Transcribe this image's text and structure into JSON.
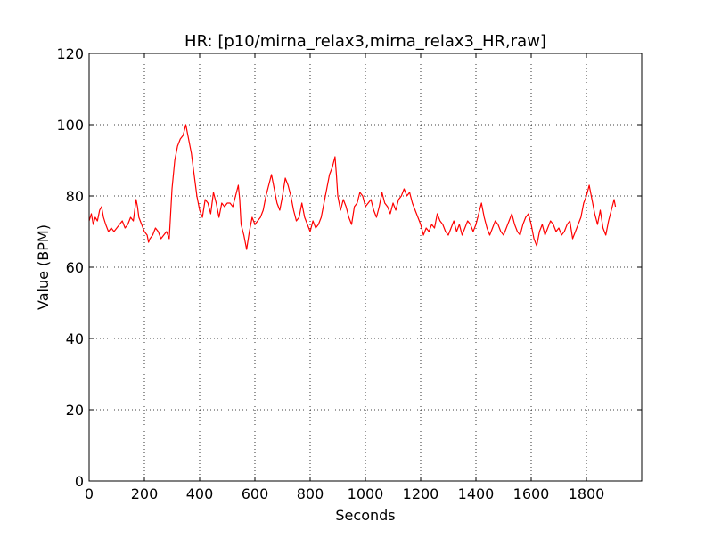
{
  "chart_data": {
    "type": "line",
    "title": "HR: [p10/mirna_relax3,mirna_relax3_HR,raw]",
    "xlabel": "Seconds",
    "ylabel": "Value (BPM)",
    "xlim": [
      0,
      2000
    ],
    "ylim": [
      0,
      120
    ],
    "xticks": [
      0,
      200,
      400,
      600,
      800,
      1000,
      1200,
      1400,
      1600,
      1800
    ],
    "yticks": [
      0,
      20,
      40,
      60,
      80,
      100,
      120
    ],
    "grid": true,
    "line_color": "#ff0000",
    "series": [
      {
        "x": [
          0,
          8,
          15,
          22,
          30,
          38,
          45,
          52,
          60,
          70,
          80,
          90,
          100,
          110,
          120,
          130,
          140,
          150,
          160,
          165,
          170,
          175,
          180,
          190,
          200,
          210,
          215,
          220,
          230,
          240,
          250,
          260,
          270,
          280,
          290,
          300,
          310,
          320,
          330,
          340,
          350,
          360,
          370,
          380,
          390,
          400,
          410,
          420,
          430,
          440,
          450,
          460,
          470,
          480,
          490,
          500,
          510,
          520,
          530,
          540,
          545,
          550,
          560,
          570,
          580,
          590,
          600,
          610,
          620,
          630,
          640,
          650,
          660,
          670,
          680,
          690,
          700,
          710,
          720,
          730,
          740,
          750,
          760,
          770,
          780,
          790,
          800,
          810,
          820,
          830,
          840,
          850,
          860,
          870,
          880,
          890,
          895,
          900,
          910,
          920,
          930,
          940,
          950,
          960,
          970,
          980,
          990,
          1000,
          1010,
          1020,
          1030,
          1040,
          1050,
          1060,
          1070,
          1080,
          1090,
          1100,
          1110,
          1120,
          1130,
          1140,
          1150,
          1160,
          1170,
          1180,
          1190,
          1200,
          1210,
          1220,
          1230,
          1240,
          1250,
          1260,
          1270,
          1280,
          1290,
          1300,
          1310,
          1320,
          1330,
          1340,
          1350,
          1360,
          1370,
          1380,
          1390,
          1400,
          1410,
          1420,
          1430,
          1440,
          1450,
          1460,
          1470,
          1480,
          1490,
          1500,
          1510,
          1520,
          1530,
          1540,
          1550,
          1560,
          1570,
          1580,
          1590,
          1600,
          1610,
          1620,
          1630,
          1640,
          1650,
          1660,
          1670,
          1680,
          1690,
          1700,
          1710,
          1720,
          1730,
          1740,
          1750,
          1760,
          1770,
          1780,
          1790,
          1800,
          1810,
          1820,
          1830,
          1840,
          1850,
          1860,
          1870,
          1880,
          1890,
          1900,
          1905
        ],
        "y": [
          73,
          75,
          72,
          74,
          73,
          76,
          77,
          74,
          72,
          70,
          71,
          70,
          71,
          72,
          73,
          71,
          72,
          74,
          73,
          76,
          79,
          77,
          74,
          72,
          70,
          69,
          67,
          68,
          69,
          71,
          70,
          68,
          69,
          70,
          68,
          82,
          90,
          94,
          96,
          97,
          100,
          96,
          92,
          86,
          80,
          76,
          74,
          79,
          78,
          75,
          81,
          78,
          74,
          78,
          77,
          78,
          78,
          77,
          80,
          83,
          79,
          72,
          69,
          65,
          70,
          74,
          72,
          73,
          74,
          76,
          80,
          83,
          86,
          82,
          78,
          76,
          80,
          85,
          83,
          80,
          76,
          73,
          74,
          78,
          74,
          72,
          70,
          73,
          71,
          72,
          74,
          78,
          82,
          86,
          88,
          91,
          86,
          80,
          76,
          79,
          77,
          74,
          72,
          77,
          78,
          81,
          80,
          77,
          78,
          79,
          76,
          74,
          77,
          81,
          78,
          77,
          75,
          78,
          76,
          79,
          80,
          82,
          80,
          81,
          78,
          76,
          74,
          72,
          69,
          71,
          70,
          72,
          71,
          75,
          73,
          72,
          70,
          69,
          71,
          73,
          70,
          72,
          69,
          71,
          73,
          72,
          70,
          72,
          75,
          78,
          74,
          71,
          69,
          71,
          73,
          72,
          70,
          69,
          71,
          73,
          75,
          72,
          70,
          69,
          72,
          74,
          75,
          72,
          68,
          66,
          70,
          72,
          69,
          71,
          73,
          72,
          70,
          71,
          69,
          70,
          72,
          73,
          68,
          70,
          72,
          74,
          78,
          80,
          83,
          79,
          75,
          72,
          76,
          71,
          69,
          73,
          76,
          79,
          77
        ]
      }
    ]
  }
}
